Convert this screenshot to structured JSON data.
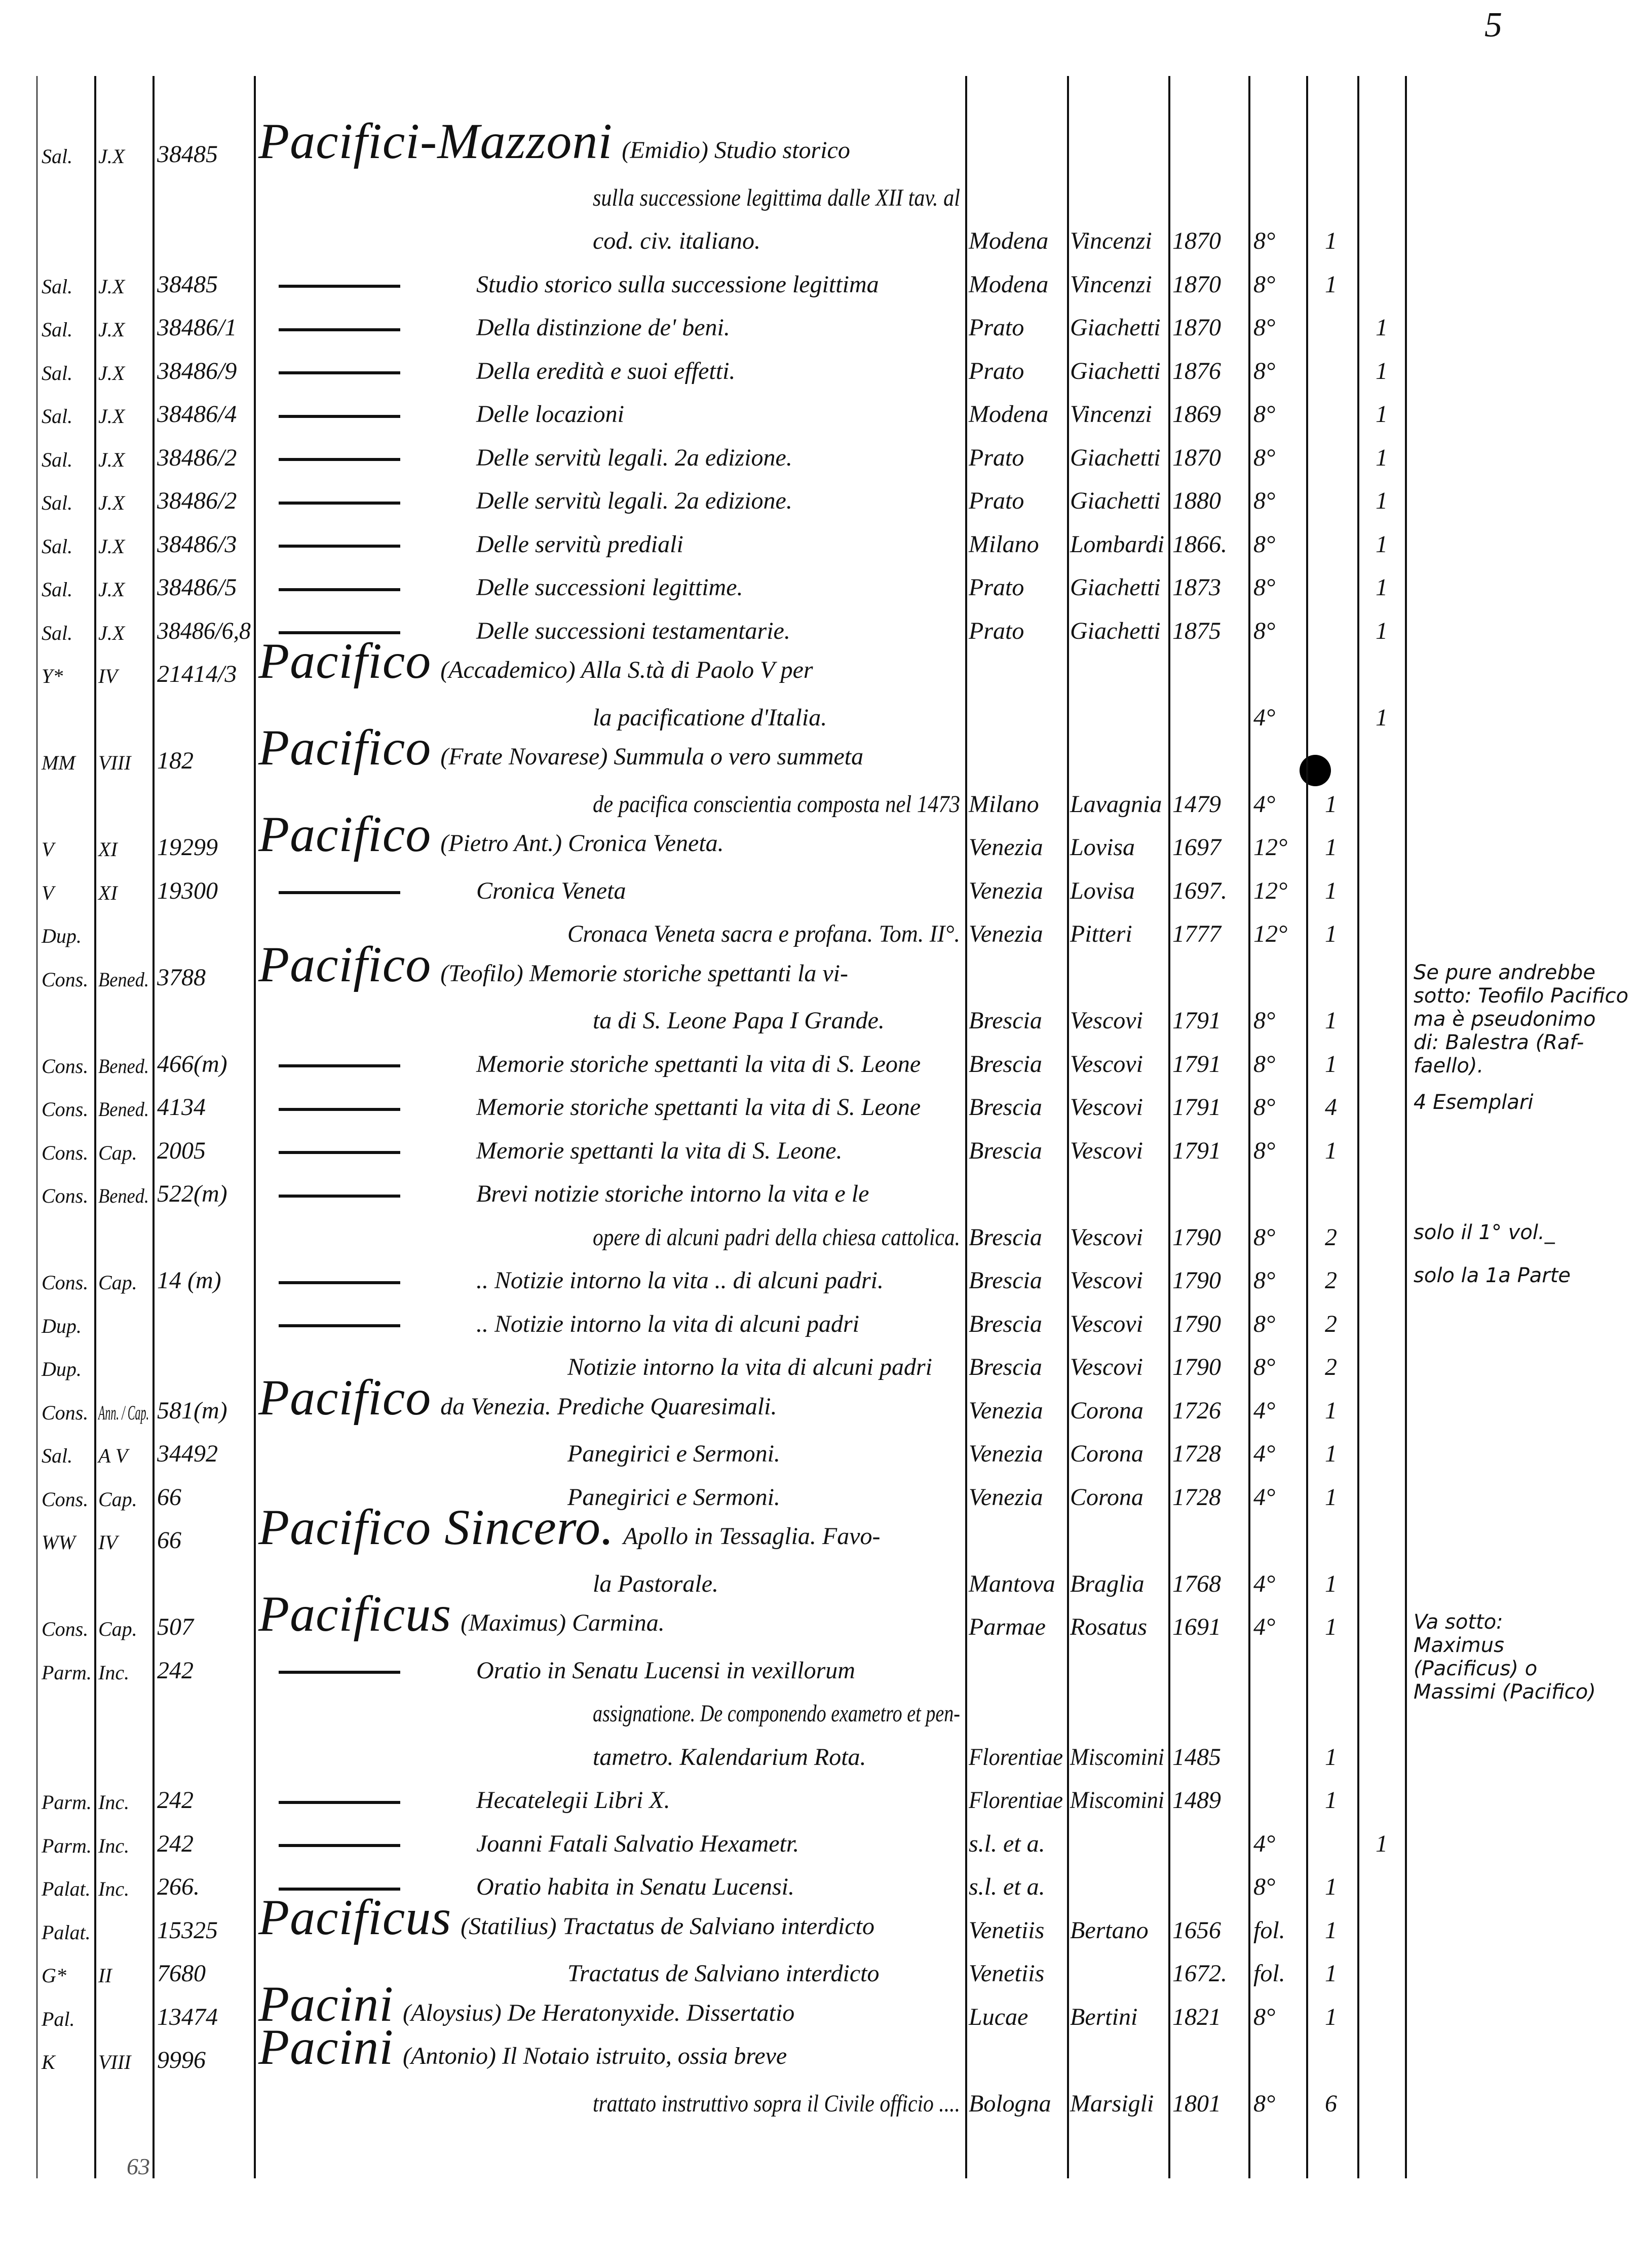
{
  "page_number_top": "5",
  "folio_bottom": "63",
  "rows": [
    {
      "shelf": "Sal.",
      "sec": "J.X",
      "num": "38485",
      "author": "Pacifici-Mazzoni",
      "title": "(Emidio) Studio storico"
    },
    {
      "title": "sulla successione legittima dalle XII tav. al"
    },
    {
      "title": "cod. civ. italiano.",
      "place": "Modena",
      "pub": "Vincenzi",
      "year": "1870",
      "fmt": "8°",
      "a": "1"
    },
    {
      "shelf": "Sal.",
      "sec": "J.X",
      "num": "38485",
      "dash": true,
      "title": "Studio storico sulla successione legittima",
      "place": "Modena",
      "pub": "Vincenzi",
      "year": "1870",
      "fmt": "8°",
      "a": "1"
    },
    {
      "shelf": "Sal.",
      "sec": "J.X",
      "num": "38486/1",
      "dash": true,
      "title": "Della distinzione de' beni.",
      "place": "Prato",
      "pub": "Giachetti",
      "year": "1870",
      "fmt": "8°",
      "b": "1"
    },
    {
      "shelf": "Sal.",
      "sec": "J.X",
      "num": "38486/9",
      "dash": true,
      "title": "Della eredità e suoi effetti.",
      "place": "Prato",
      "pub": "Giachetti",
      "year": "1876",
      "fmt": "8°",
      "b": "1"
    },
    {
      "shelf": "Sal.",
      "sec": "J.X",
      "num": "38486/4",
      "dash": true,
      "title": "Delle locazioni",
      "place": "Modena",
      "pub": "Vincenzi",
      "year": "1869",
      "fmt": "8°",
      "b": "1"
    },
    {
      "shelf": "Sal.",
      "sec": "J.X",
      "num": "38486/2",
      "dash": true,
      "title": "Delle servitù legali. 2a edizione.",
      "place": "Prato",
      "pub": "Giachetti",
      "year": "1870",
      "fmt": "8°",
      "b": "1"
    },
    {
      "shelf": "Sal.",
      "sec": "J.X",
      "num": "38486/2",
      "dash": true,
      "title": "Delle servitù legali. 2a edizione.",
      "place": "Prato",
      "pub": "Giachetti",
      "year": "1880",
      "fmt": "8°",
      "b": "1"
    },
    {
      "shelf": "Sal.",
      "sec": "J.X",
      "num": "38486/3",
      "dash": true,
      "title": "Delle servitù prediali",
      "place": "Milano",
      "pub": "Lombardi",
      "year": "1866.",
      "fmt": "8°",
      "b": "1"
    },
    {
      "shelf": "Sal.",
      "sec": "J.X",
      "num": "38486/5",
      "dash": true,
      "title": "Delle successioni legittime.",
      "place": "Prato",
      "pub": "Giachetti",
      "year": "1873",
      "fmt": "8°",
      "b": "1"
    },
    {
      "shelf": "Sal.",
      "sec": "J.X",
      "num": "38486/6,8",
      "dash": true,
      "title": "Delle successioni testamentarie.",
      "place": "Prato",
      "pub": "Giachetti",
      "year": "1875",
      "fmt": "8°",
      "b": "1"
    },
    {
      "shelf": "Y*",
      "sec": "IV",
      "num": "21414/3",
      "author": "Pacifico",
      "title": "(Accademico) Alla S.tà di Paolo V per"
    },
    {
      "title": "la pacificatione d'Italia.",
      "fmt": "4°",
      "b": "1"
    },
    {
      "shelf": "MM",
      "sec": "VIII",
      "num": "182",
      "author": "Pacifico",
      "title": "(Frate Novarese) Summula o vero summeta"
    },
    {
      "title": "de pacifica conscientia composta nel 1473",
      "place": "Milano",
      "pub": "Lavagnia",
      "year": "1479",
      "fmt": "4°",
      "a": "1"
    },
    {
      "shelf": "V",
      "sec": "XI",
      "num": "19299",
      "author": "Pacifico",
      "title": "(Pietro Ant.) Cronica Veneta.",
      "place": "Venezia",
      "pub": "Lovisa",
      "year": "1697",
      "fmt": "12°",
      "a": "1"
    },
    {
      "shelf": "V",
      "sec": "XI",
      "num": "19300",
      "dash": true,
      "title": "Cronica Veneta",
      "place": "Venezia",
      "pub": "Lovisa",
      "year": "1697.",
      "fmt": "12°",
      "a": "1"
    },
    {
      "shelf": "Dup.",
      "title": "Cronaca Veneta sacra e profana. Tom. II°.",
      "place": "Venezia",
      "pub": "Pitteri",
      "year": "1777",
      "fmt": "12°",
      "a": "1"
    },
    {
      "shelf": "Cons.",
      "sec": "Bened.",
      "num": "3788",
      "author": "Pacifico",
      "title": "(Teofilo) Memorie storiche spettanti la vi-"
    },
    {
      "title": "ta di S. Leone Papa I Grande.",
      "place": "Brescia",
      "pub": "Vescovi",
      "year": "1791",
      "fmt": "8°",
      "a": "1"
    },
    {
      "shelf": "Cons.",
      "sec": "Bened.",
      "num": "466(m)",
      "dash": true,
      "title": "Memorie storiche spettanti la vita di S. Leone",
      "place": "Brescia",
      "pub": "Vescovi",
      "year": "1791",
      "fmt": "8°",
      "a": "1"
    },
    {
      "shelf": "Cons.",
      "sec": "Bened.",
      "num": "4134",
      "dash": true,
      "title": "Memorie storiche spettanti la vita di S. Leone",
      "place": "Brescia",
      "pub": "Vescovi",
      "year": "1791",
      "fmt": "8°",
      "a": "4"
    },
    {
      "shelf": "Cons.",
      "sec": "Cap.",
      "num": "2005",
      "dash": true,
      "title": "Memorie spettanti la vita di S. Leone.",
      "place": "Brescia",
      "pub": "Vescovi",
      "year": "1791",
      "fmt": "8°",
      "a": "1"
    },
    {
      "shelf": "Cons.",
      "sec": "Bened.",
      "num": "522(m)",
      "dash": true,
      "title": "Brevi notizie storiche intorno la vita e le"
    },
    {
      "title": "opere di alcuni padri della chiesa cattolica.",
      "place": "Brescia",
      "pub": "Vescovi",
      "year": "1790",
      "fmt": "8°",
      "a": "2"
    },
    {
      "shelf": "Cons.",
      "sec": "Cap.",
      "num": "14 (m)",
      "dash": true,
      "title": ".. Notizie intorno la vita .. di alcuni padri.",
      "place": "Brescia",
      "pub": "Vescovi",
      "year": "1790",
      "fmt": "8°",
      "a": "2"
    },
    {
      "shelf": "Dup.",
      "dash": true,
      "title": ".. Notizie intorno la vita di alcuni padri",
      "place": "Brescia",
      "pub": "Vescovi",
      "year": "1790",
      "fmt": "8°",
      "a": "2"
    },
    {
      "shelf": "Dup.",
      "title": "Notizie intorno la vita di alcuni padri",
      "place": "Brescia",
      "pub": "Vescovi",
      "year": "1790",
      "fmt": "8°",
      "a": "2"
    },
    {
      "shelf": "Cons.",
      "sec": "Ann. / Cap.",
      "num": "581(m)",
      "author": "Pacifico",
      "title": "da Venezia. Prediche Quaresimali.",
      "place": "Venezia",
      "pub": "Corona",
      "year": "1726",
      "fmt": "4°",
      "a": "1"
    },
    {
      "shelf": "Sal.",
      "sec": "A V",
      "num": "34492",
      "title": "Panegirici e Sermoni.",
      "place": "Venezia",
      "pub": "Corona",
      "year": "1728",
      "fmt": "4°",
      "a": "1"
    },
    {
      "shelf": "Cons.",
      "sec": "Cap.",
      "num": "66",
      "title": "Panegirici e Sermoni.",
      "place": "Venezia",
      "pub": "Corona",
      "year": "1728",
      "fmt": "4°",
      "a": "1"
    },
    {
      "shelf": "WW",
      "sec": "IV",
      "num": "66",
      "author": "Pacifico Sincero.",
      "title": "Apollo in Tessaglia. Favo-"
    },
    {
      "title": "la Pastorale.",
      "place": "Mantova",
      "pub": "Braglia",
      "year": "1768",
      "fmt": "4°",
      "a": "1"
    },
    {
      "shelf": "Cons.",
      "sec": "Cap.",
      "num": "507",
      "author": "Pacificus",
      "title": "(Maximus) Carmina.",
      "place": "Parmae",
      "pub": "Rosatus",
      "year": "1691",
      "fmt": "4°",
      "a": "1"
    },
    {
      "shelf": "Parm.",
      "sec": "Inc.",
      "num": "242",
      "dash": true,
      "title": "Oratio in Senatu Lucensi in vexillorum"
    },
    {
      "title": "assignatione. De componendo exametro et pen-"
    },
    {
      "title": "tametro. Kalendarium Rota.",
      "place": "Florentiae",
      "pub": "Miscomini",
      "year": "1485",
      "a": "1"
    },
    {
      "shelf": "Parm.",
      "sec": "Inc.",
      "num": "242",
      "dash": true,
      "title": "Hecatelegii Libri X.",
      "place": "Florentiae",
      "pub": "Miscomini",
      "year": "1489",
      "a": "1"
    },
    {
      "shelf": "Parm.",
      "sec": "Inc.",
      "num": "242",
      "dash": true,
      "title": "Joanni Fatali Salvatio Hexametr.",
      "place": "s.l. et a.",
      "fmt": "4°",
      "b": "1"
    },
    {
      "shelf": "Palat.",
      "sec": "Inc.",
      "num": "266.",
      "dash": true,
      "title": "Oratio habita in Senatu Lucensi.",
      "place": "s.l. et a.",
      "fmt": "8°",
      "a": "1"
    },
    {
      "shelf": "Palat.",
      "num": "15325",
      "author": "Pacificus",
      "title": "(Statilius) Tractatus de Salviano interdicto",
      "place": "Venetiis",
      "pub": "Bertano",
      "year": "1656",
      "fmt": "fol.",
      "a": "1"
    },
    {
      "shelf": "G*",
      "sec": "II",
      "num": "7680",
      "title": "Tractatus de Salviano interdicto",
      "place": "Venetiis",
      "year": "1672.",
      "fmt": "fol.",
      "a": "1"
    },
    {
      "shelf": "Pal.",
      "num": "13474",
      "author": "Pacini",
      "title": "(Aloysius) De Heratonyxide. Dissertatio",
      "place": "Lucae",
      "pub": "Bertini",
      "year": "1821",
      "fmt": "8°",
      "a": "1"
    },
    {
      "shelf": "K",
      "sec": "VIII",
      "num": "9996",
      "author": "Pacini",
      "title": "(Antonio) Il Notaio istruito, ossia breve"
    },
    {
      "title": "trattato instruttivo sopra il Civile officio ....",
      "place": "Bologna",
      "pub": "Marsigli",
      "year": "1801",
      "fmt": "8°",
      "a": "6"
    }
  ],
  "notes": [
    {
      "row": 19,
      "lines": [
        "Se pure andrebbe",
        "sotto: Teofilo Pacifico",
        "ma è pseudonimo",
        "di: Balestra (Raf-",
        "faello)."
      ]
    },
    {
      "row": 22,
      "lines": [
        "4 Esemplari"
      ]
    },
    {
      "row": 25,
      "lines": [
        "solo il 1° vol._"
      ]
    },
    {
      "row": 26,
      "lines": [
        "solo la 1a Parte"
      ]
    },
    {
      "row": 34,
      "lines": [
        "Va sotto:",
        "Maximus",
        "(Pacificus) o",
        "Massimi (Pacifico)"
      ]
    }
  ]
}
